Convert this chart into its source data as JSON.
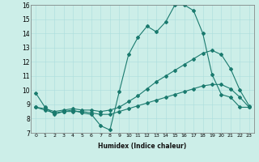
{
  "xlabel": "Humidex (Indice chaleur)",
  "bg_color": "#cceee8",
  "line_color": "#1a7a6e",
  "xlim": [
    -0.5,
    23.5
  ],
  "ylim": [
    7,
    16
  ],
  "xticks": [
    0,
    1,
    2,
    3,
    4,
    5,
    6,
    7,
    8,
    9,
    10,
    11,
    12,
    13,
    14,
    15,
    16,
    17,
    18,
    19,
    20,
    21,
    22,
    23
  ],
  "yticks": [
    7,
    8,
    9,
    10,
    11,
    12,
    13,
    14,
    15,
    16
  ],
  "series": [
    {
      "x": [
        0,
        1,
        2,
        3,
        4,
        5,
        6,
        7,
        8,
        9,
        10,
        11,
        12,
        13,
        14,
        15,
        16,
        17,
        18,
        19,
        20,
        21,
        22,
        23
      ],
      "y": [
        9.8,
        8.8,
        8.3,
        8.5,
        8.6,
        8.4,
        8.3,
        7.5,
        7.2,
        9.9,
        12.5,
        13.7,
        14.5,
        14.1,
        14.8,
        16.0,
        16.0,
        15.6,
        14.0,
        11.1,
        9.7,
        9.5,
        8.8,
        8.8
      ]
    },
    {
      "x": [
        0,
        1,
        2,
        3,
        4,
        5,
        6,
        7,
        8,
        9,
        10,
        11,
        12,
        13,
        14,
        15,
        16,
        17,
        18,
        19,
        20,
        21,
        22,
        23
      ],
      "y": [
        8.8,
        8.7,
        8.5,
        8.6,
        8.7,
        8.6,
        8.6,
        8.5,
        8.6,
        8.8,
        9.2,
        9.6,
        10.1,
        10.6,
        11.0,
        11.4,
        11.8,
        12.2,
        12.6,
        12.8,
        12.5,
        11.5,
        10.0,
        8.9
      ]
    },
    {
      "x": [
        0,
        1,
        2,
        3,
        4,
        5,
        6,
        7,
        8,
        9,
        10,
        11,
        12,
        13,
        14,
        15,
        16,
        17,
        18,
        19,
        20,
        21,
        22,
        23
      ],
      "y": [
        8.8,
        8.6,
        8.4,
        8.5,
        8.5,
        8.5,
        8.4,
        8.3,
        8.3,
        8.5,
        8.7,
        8.9,
        9.1,
        9.3,
        9.5,
        9.7,
        9.9,
        10.1,
        10.3,
        10.4,
        10.4,
        10.1,
        9.5,
        8.8
      ]
    }
  ]
}
